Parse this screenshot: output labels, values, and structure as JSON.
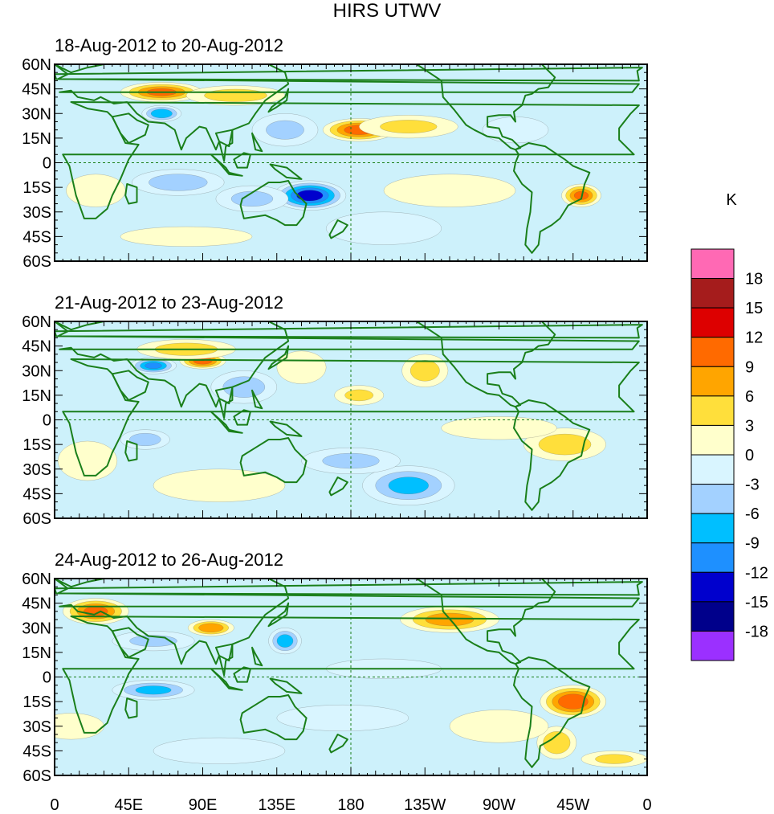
{
  "title": "HIRS UTWV",
  "units": "K",
  "colors": {
    "land_outline": "#1a7f1a",
    "dashed_ref": "#1a7f1a",
    "ocean_bg": "#cdf1fb"
  },
  "colorbar": {
    "bins": [
      {
        "color": "#9b30ff"
      },
      {
        "color": "#00008b"
      },
      {
        "color": "#0000cd"
      },
      {
        "color": "#1e90ff"
      },
      {
        "color": "#00bfff"
      },
      {
        "color": "#a3d1ff"
      },
      {
        "color": "#d9f5ff"
      },
      {
        "color": "#ffffcc"
      },
      {
        "color": "#ffdf3b"
      },
      {
        "color": "#ffa500"
      },
      {
        "color": "#ff6a00"
      },
      {
        "color": "#dd0000"
      },
      {
        "color": "#a51c1c"
      },
      {
        "color": "#ff69b4"
      }
    ],
    "labels": [
      "-18",
      "-15",
      "-12",
      "-9",
      "-6",
      "-3",
      "0",
      "3",
      "6",
      "9",
      "12",
      "15",
      "18"
    ]
  },
  "x_ticks": [
    "0",
    "45E",
    "90E",
    "135E",
    "180",
    "135W",
    "90W",
    "45W",
    "0"
  ],
  "y_ticks": [
    "60N",
    "45N",
    "30N",
    "15N",
    "0",
    "15S",
    "30S",
    "45S",
    "60S"
  ],
  "chart_data": {
    "type": "heatmap",
    "title": "HIRS UTWV",
    "units": "K",
    "levels": [
      -18,
      -15,
      -12,
      -9,
      -6,
      -3,
      0,
      3,
      6,
      9,
      12,
      15,
      18
    ],
    "xlim": [
      0,
      360
    ],
    "ylim": [
      -60,
      60
    ],
    "x_ticks": [
      "0",
      "45E",
      "90E",
      "135E",
      "180",
      "135W",
      "90W",
      "45W",
      "0"
    ],
    "y_ticks": [
      "60N",
      "45N",
      "30N",
      "15N",
      "0",
      "15S",
      "30S",
      "45S",
      "60S"
    ],
    "panels": [
      {
        "title": "18-Aug-2012 to 20-Aug-2012",
        "anomalies": [
          {
            "lon": 65,
            "lat": 43,
            "value": 12,
            "rx": 25,
            "ry": 6
          },
          {
            "lon": 110,
            "lat": 41,
            "value": 7,
            "rx": 30,
            "ry": 6
          },
          {
            "lon": 65,
            "lat": 30,
            "value": -11,
            "rx": 12,
            "ry": 5
          },
          {
            "lon": 155,
            "lat": -20,
            "value": -16,
            "rx": 22,
            "ry": 9
          },
          {
            "lon": 120,
            "lat": -22,
            "value": -6,
            "rx": 22,
            "ry": 8
          },
          {
            "lon": 75,
            "lat": -12,
            "value": -7,
            "rx": 28,
            "ry": 8
          },
          {
            "lon": 185,
            "lat": 20,
            "value": 13,
            "rx": 22,
            "ry": 7
          },
          {
            "lon": 215,
            "lat": 22,
            "value": 6,
            "rx": 30,
            "ry": 7
          },
          {
            "lon": 320,
            "lat": -20,
            "value": 12,
            "rx": 12,
            "ry": 7
          },
          {
            "lon": 240,
            "lat": -17,
            "value": 5,
            "rx": 40,
            "ry": 10
          },
          {
            "lon": 25,
            "lat": -17,
            "value": 5,
            "rx": 18,
            "ry": 10
          },
          {
            "lon": 140,
            "lat": 20,
            "value": -6,
            "rx": 20,
            "ry": 10
          },
          {
            "lon": 200,
            "lat": -40,
            "value": -5,
            "rx": 35,
            "ry": 10
          },
          {
            "lon": 280,
            "lat": 20,
            "value": -5,
            "rx": 20,
            "ry": 8
          },
          {
            "lon": 80,
            "lat": -45,
            "value": 4,
            "rx": 40,
            "ry": 6
          }
        ]
      },
      {
        "title": "21-Aug-2012 to 23-Aug-2012",
        "anomalies": [
          {
            "lon": 90,
            "lat": 36,
            "value": 13,
            "rx": 14,
            "ry": 5
          },
          {
            "lon": 80,
            "lat": 43,
            "value": 7,
            "rx": 30,
            "ry": 6
          },
          {
            "lon": 60,
            "lat": 33,
            "value": -12,
            "rx": 14,
            "ry": 5
          },
          {
            "lon": 150,
            "lat": 32,
            "value": 5,
            "rx": 15,
            "ry": 10
          },
          {
            "lon": 225,
            "lat": 30,
            "value": 7,
            "rx": 14,
            "ry": 10
          },
          {
            "lon": 215,
            "lat": -40,
            "value": -9,
            "rx": 28,
            "ry": 12
          },
          {
            "lon": 180,
            "lat": -25,
            "value": -6,
            "rx": 30,
            "ry": 8
          },
          {
            "lon": 310,
            "lat": -15,
            "value": 7,
            "rx": 25,
            "ry": 10
          },
          {
            "lon": 270,
            "lat": -5,
            "value": 5,
            "rx": 35,
            "ry": 7
          },
          {
            "lon": 115,
            "lat": 20,
            "value": -7,
            "rx": 20,
            "ry": 10
          },
          {
            "lon": 55,
            "lat": -12,
            "value": -7,
            "rx": 15,
            "ry": 6
          },
          {
            "lon": 20,
            "lat": -25,
            "value": 5,
            "rx": 18,
            "ry": 12
          },
          {
            "lon": 100,
            "lat": -40,
            "value": 4,
            "rx": 40,
            "ry": 10
          },
          {
            "lon": 185,
            "lat": 15,
            "value": 6,
            "rx": 15,
            "ry": 6
          }
        ]
      },
      {
        "title": "24-Aug-2012 to 26-Aug-2012",
        "anomalies": [
          {
            "lon": 25,
            "lat": 40,
            "value": 12,
            "rx": 20,
            "ry": 8
          },
          {
            "lon": 95,
            "lat": 30,
            "value": 11,
            "rx": 14,
            "ry": 5
          },
          {
            "lon": 140,
            "lat": 22,
            "value": -10,
            "rx": 10,
            "ry": 8
          },
          {
            "lon": 240,
            "lat": 35,
            "value": 10,
            "rx": 30,
            "ry": 8
          },
          {
            "lon": 315,
            "lat": -15,
            "value": 14,
            "rx": 20,
            "ry": 10
          },
          {
            "lon": 305,
            "lat": -40,
            "value": 8,
            "rx": 12,
            "ry": 10
          },
          {
            "lon": 60,
            "lat": -8,
            "value": -9,
            "rx": 25,
            "ry": 6
          },
          {
            "lon": 60,
            "lat": 22,
            "value": -6,
            "rx": 25,
            "ry": 6
          },
          {
            "lon": 175,
            "lat": -25,
            "value": -5,
            "rx": 40,
            "ry": 8
          },
          {
            "lon": 270,
            "lat": -30,
            "value": 5,
            "rx": 30,
            "ry": 10
          },
          {
            "lon": 10,
            "lat": -30,
            "value": 5,
            "rx": 20,
            "ry": 8
          },
          {
            "lon": 200,
            "lat": 5,
            "value": -5,
            "rx": 35,
            "ry": 6
          },
          {
            "lon": 100,
            "lat": -45,
            "value": -4,
            "rx": 40,
            "ry": 8
          },
          {
            "lon": 340,
            "lat": -50,
            "value": 6,
            "rx": 20,
            "ry": 5
          }
        ]
      }
    ]
  }
}
